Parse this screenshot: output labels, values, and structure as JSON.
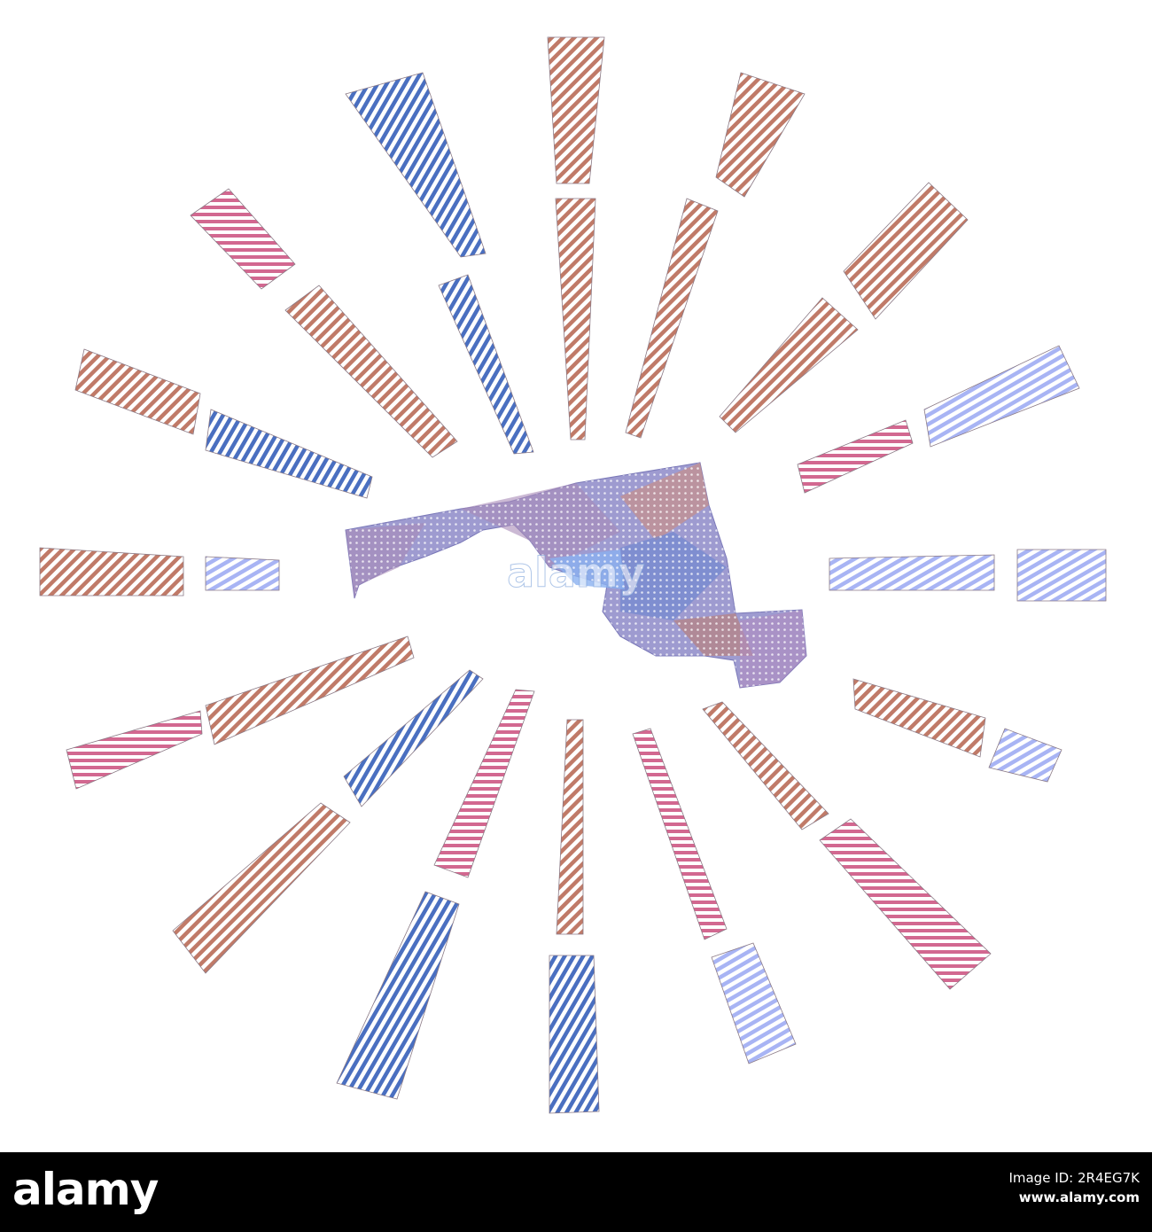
{
  "watermark_text": "alamy",
  "footer": {
    "logo": "alamy",
    "image_id_label": "Image ID: 2R4EG7K",
    "site": "www.alamy.com"
  },
  "colors": {
    "brown": "#c07a68",
    "blue": "#4a6fc0",
    "pink": "#d26890",
    "lavender": "#a8b4f4",
    "map_fill": "#8d89c8",
    "footer_bg": "#000000"
  }
}
